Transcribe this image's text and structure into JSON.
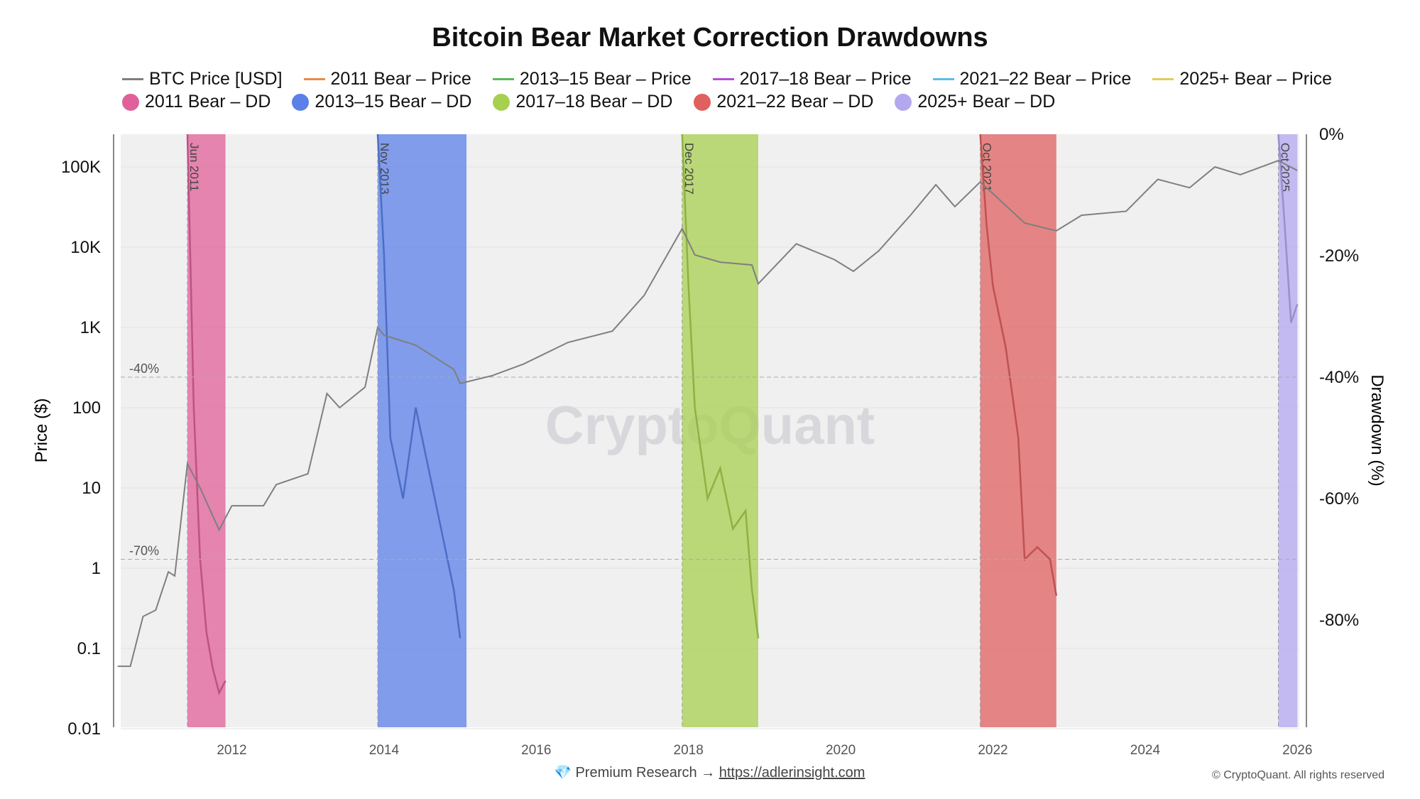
{
  "chart_data": {
    "type": "line",
    "title": "Bitcoin Bear Market Correction Drawdowns",
    "xlabel": "",
    "ylabel": "Price ($)",
    "y2label": "Drawdown (%)",
    "y_scale": "log",
    "ylim": [
      0.01,
      250000
    ],
    "y2lim": [
      0,
      -100
    ],
    "xlim": [
      "2010-07",
      "2026-01"
    ],
    "x_ticks": [
      "2012",
      "2014",
      "2016",
      "2018",
      "2020",
      "2022",
      "2024",
      "2026"
    ],
    "y_ticks": [
      {
        "v": 100000,
        "label": "100K"
      },
      {
        "v": 10000,
        "label": "10K"
      },
      {
        "v": 1000,
        "label": "1K"
      },
      {
        "v": 100,
        "label": "100"
      },
      {
        "v": 10,
        "label": "10"
      },
      {
        "v": 1,
        "label": "1"
      },
      {
        "v": 0.1,
        "label": "0.1"
      },
      {
        "v": 0.01,
        "label": "0.01"
      }
    ],
    "y2_ticks": [
      {
        "v": 0,
        "label": "0%"
      },
      {
        "v": -20,
        "label": "-20%"
      },
      {
        "v": -40,
        "label": "-40%"
      },
      {
        "v": -60,
        "label": "-60%"
      },
      {
        "v": -80,
        "label": "-80%"
      }
    ],
    "ref_lines": [
      {
        "v": -40,
        "label": "-40%"
      },
      {
        "v": -70,
        "label": "-70%"
      }
    ],
    "grid": true,
    "legend": "top",
    "watermark": "CryptoQuant",
    "price_series": {
      "name": "BTC Price [USD]",
      "color": "#7f7f7f",
      "points": [
        [
          "2010-07",
          0.06
        ],
        [
          "2010-09",
          0.06
        ],
        [
          "2010-11",
          0.25
        ],
        [
          "2011-01",
          0.3
        ],
        [
          "2011-03",
          0.9
        ],
        [
          "2011-04",
          0.8
        ],
        [
          "2011-06",
          20
        ],
        [
          "2011-08",
          10
        ],
        [
          "2011-11",
          3
        ],
        [
          "2012-01",
          6
        ],
        [
          "2012-06",
          6
        ],
        [
          "2012-08",
          11
        ],
        [
          "2013-01",
          15
        ],
        [
          "2013-04",
          150
        ],
        [
          "2013-06",
          100
        ],
        [
          "2013-10",
          180
        ],
        [
          "2013-12",
          1000
        ],
        [
          "2014-01",
          800
        ],
        [
          "2014-06",
          600
        ],
        [
          "2014-12",
          300
        ],
        [
          "2015-01",
          200
        ],
        [
          "2015-06",
          250
        ],
        [
          "2015-11",
          350
        ],
        [
          "2016-06",
          650
        ],
        [
          "2017-01",
          900
        ],
        [
          "2017-06",
          2500
        ],
        [
          "2017-12",
          17000
        ],
        [
          "2018-02",
          8000
        ],
        [
          "2018-06",
          6500
        ],
        [
          "2018-11",
          6000
        ],
        [
          "2018-12",
          3500
        ],
        [
          "2019-06",
          11000
        ],
        [
          "2019-12",
          7000
        ],
        [
          "2020-03",
          5000
        ],
        [
          "2020-07",
          9000
        ],
        [
          "2020-12",
          25000
        ],
        [
          "2021-04",
          60000
        ],
        [
          "2021-07",
          32000
        ],
        [
          "2021-11",
          65000
        ],
        [
          "2022-06",
          20000
        ],
        [
          "2022-11",
          16000
        ],
        [
          "2023-03",
          25000
        ],
        [
          "2023-10",
          28000
        ],
        [
          "2024-03",
          70000
        ],
        [
          "2024-08",
          55000
        ],
        [
          "2024-12",
          100000
        ],
        [
          "2025-04",
          80000
        ],
        [
          "2025-10",
          120000
        ],
        [
          "2026-01",
          90000
        ]
      ]
    },
    "bears": [
      {
        "name": "2011 Bear",
        "label": "Jun 2011",
        "start": "2011-06",
        "end": "2011-12",
        "price_color": "#e8894a",
        "dd_color": "#e0609a",
        "dd": [
          [
            "2011-06",
            0
          ],
          [
            "2011-07",
            -45
          ],
          [
            "2011-08",
            -70
          ],
          [
            "2011-09",
            -82
          ],
          [
            "2011-10",
            -88
          ],
          [
            "2011-11",
            -92
          ],
          [
            "2011-12",
            -90
          ]
        ]
      },
      {
        "name": "2013–15 Bear",
        "label": "Nov 2013",
        "start": "2013-12",
        "end": "2015-02",
        "price_color": "#5cb85c",
        "dd_color": "#5b80e8",
        "dd": [
          [
            "2013-12",
            0
          ],
          [
            "2014-01",
            -20
          ],
          [
            "2014-02",
            -50
          ],
          [
            "2014-04",
            -60
          ],
          [
            "2014-06",
            -45
          ],
          [
            "2014-08",
            -55
          ],
          [
            "2014-10",
            -65
          ],
          [
            "2014-12",
            -75
          ],
          [
            "2015-01",
            -83
          ]
        ]
      },
      {
        "name": "2017–18 Bear",
        "label": "Dec 2017",
        "start": "2017-12",
        "end": "2018-12",
        "price_color": "#b34fd9",
        "dd_color": "#a8d050",
        "dd": [
          [
            "2017-12",
            0
          ],
          [
            "2018-01",
            -25
          ],
          [
            "2018-02",
            -45
          ],
          [
            "2018-04",
            -60
          ],
          [
            "2018-06",
            -55
          ],
          [
            "2018-08",
            -65
          ],
          [
            "2018-10",
            -62
          ],
          [
            "2018-11",
            -75
          ],
          [
            "2018-12",
            -83
          ]
        ]
      },
      {
        "name": "2021–22 Bear",
        "label": "Oct 2021",
        "start": "2021-11",
        "end": "2022-11",
        "price_color": "#5bbde8",
        "dd_color": "#e06060",
        "dd": [
          [
            "2021-11",
            0
          ],
          [
            "2021-12",
            -15
          ],
          [
            "2022-01",
            -25
          ],
          [
            "2022-03",
            -35
          ],
          [
            "2022-05",
            -50
          ],
          [
            "2022-06",
            -70
          ],
          [
            "2022-08",
            -68
          ],
          [
            "2022-10",
            -70
          ],
          [
            "2022-11",
            -76
          ]
        ]
      },
      {
        "name": "2025+ Bear",
        "label": "Oct 2025",
        "start": "2025-10",
        "end": "2026-01",
        "price_color": "#e8c95a",
        "dd_color": "#b3a8f0",
        "dd": [
          [
            "2025-10",
            0
          ],
          [
            "2025-11",
            -15
          ],
          [
            "2025-12",
            -31
          ],
          [
            "2026-01",
            -28
          ]
        ]
      }
    ]
  },
  "legend": {
    "price_items": [
      "BTC Price [USD]",
      "2011 Bear – Price",
      "2013–15 Bear – Price",
      "2017–18 Bear – Price",
      "2021–22 Bear – Price",
      "2025+ Bear – Price"
    ],
    "price_colors": [
      "#7f7f7f",
      "#e8894a",
      "#5cb85c",
      "#b34fd9",
      "#5bbde8",
      "#e8c95a"
    ],
    "dd_items": [
      "2011 Bear – DD",
      "2013–15 Bear – DD",
      "2017–18 Bear – DD",
      "2021–22 Bear – DD",
      "2025+ Bear – DD"
    ],
    "dd_colors": [
      "#e0609a",
      "#5b80e8",
      "#a8d050",
      "#e06060",
      "#b3a8f0"
    ]
  },
  "footer": {
    "icon": "diamond-icon",
    "text": "Premium Research →",
    "link": "https://adlerinsight.com",
    "copyright": "© CryptoQuant. All rights reserved"
  }
}
